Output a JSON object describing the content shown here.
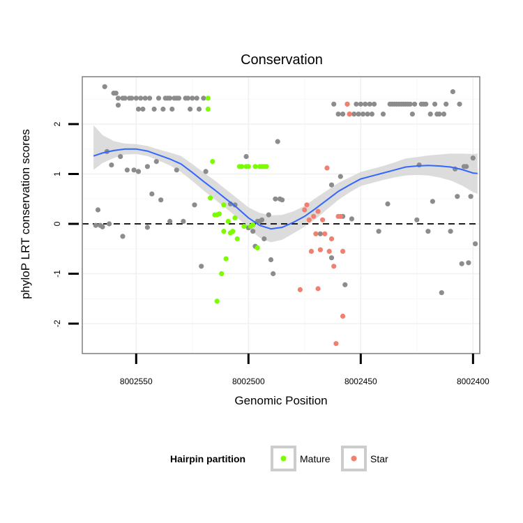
{
  "chart_data": {
    "type": "scatter",
    "title": "Conservation",
    "xlabel": "Genomic Position",
    "ylabel": "phyloP LRT conservation scores",
    "x_reversed": true,
    "xlim": [
      8002574,
      8002397
    ],
    "ylim": [
      -2.6,
      2.95
    ],
    "x_ticks": [
      8002550,
      8002500,
      8002450,
      8002400
    ],
    "x_tick_labels": [
      "8002550",
      "8002500",
      "8002450",
      "8002400"
    ],
    "y_ticks": [
      -2,
      -1,
      0,
      1,
      2
    ],
    "y_tick_labels": [
      "-2",
      "-1",
      "0",
      "1",
      "2"
    ],
    "reference_line": {
      "y": 0,
      "style": "dashed"
    },
    "grid": true,
    "legend": {
      "title": "Hairpin partition",
      "placement": "bottom",
      "entries": [
        {
          "name": "Mature",
          "color": "#7cfc00"
        },
        {
          "name": "Star",
          "color": "#f08070"
        }
      ]
    },
    "colors": {
      "other": "#8c8c8c",
      "mature": "#7cfc00",
      "star": "#f08070",
      "smooth": "#3366ff",
      "band": "#d6d6d6",
      "panel_border": "#7f7f7f"
    },
    "series": [
      {
        "group": "other",
        "points": [
          [
            8002568,
            -0.03
          ],
          [
            8002567,
            0.28
          ],
          [
            8002566,
            -0.03
          ],
          [
            8002565,
            -0.06
          ],
          [
            8002564,
            2.75
          ],
          [
            8002563,
            1.45
          ],
          [
            8002562,
            0.0
          ],
          [
            8002561,
            1.18
          ],
          [
            8002560,
            2.62
          ],
          [
            8002559,
            2.62
          ],
          [
            8002558,
            2.52
          ],
          [
            8002558,
            2.38
          ],
          [
            8002557,
            1.35
          ],
          [
            8002556,
            -0.25
          ],
          [
            8002556,
            2.52
          ],
          [
            8002555,
            2.52
          ],
          [
            8002554,
            1.08
          ],
          [
            8002553,
            2.52
          ],
          [
            8002552,
            2.52
          ],
          [
            8002551,
            1.08
          ],
          [
            8002550,
            2.52
          ],
          [
            8002549,
            1.05
          ],
          [
            8002549,
            2.3
          ],
          [
            8002548,
            2.52
          ],
          [
            8002547,
            2.3
          ],
          [
            8002546,
            2.52
          ],
          [
            8002545,
            -0.07
          ],
          [
            8002545,
            1.15
          ],
          [
            8002544,
            2.52
          ],
          [
            8002543,
            0.6
          ],
          [
            8002542,
            2.3
          ],
          [
            8002541,
            1.25
          ],
          [
            8002540,
            2.52
          ],
          [
            8002539,
            0.48
          ],
          [
            8002538,
            2.3
          ],
          [
            8002537,
            2.52
          ],
          [
            8002536,
            2.52
          ],
          [
            8002535,
            0.05
          ],
          [
            8002535,
            2.52
          ],
          [
            8002534,
            2.3
          ],
          [
            8002533,
            2.52
          ],
          [
            8002532,
            1.08
          ],
          [
            8002532,
            2.52
          ],
          [
            8002531,
            2.52
          ],
          [
            8002529,
            0.05
          ],
          [
            8002528,
            2.52
          ],
          [
            8002527,
            2.52
          ],
          [
            8002526,
            2.3
          ],
          [
            8002525,
            2.52
          ],
          [
            8002524,
            0.38
          ],
          [
            8002523,
            2.52
          ],
          [
            8002522,
            2.3
          ],
          [
            8002521,
            -0.85
          ],
          [
            8002520,
            2.52
          ],
          [
            8002519,
            1.05
          ],
          [
            8002508,
            0.4
          ],
          [
            8002506,
            0.38
          ],
          [
            8002501,
            1.35
          ],
          [
            8002500,
            -0.08
          ],
          [
            8002498,
            -0.15
          ],
          [
            8002497,
            -0.45
          ],
          [
            8002496,
            0.05
          ],
          [
            8002495,
            0.05
          ],
          [
            8002494,
            0.08
          ],
          [
            8002493,
            -0.3
          ],
          [
            8002491,
            0.18
          ],
          [
            8002490,
            -0.72
          ],
          [
            8002489,
            -1.0
          ],
          [
            8002488,
            0.5
          ],
          [
            8002487,
            1.65
          ],
          [
            8002486,
            0.5
          ],
          [
            8002485,
            0.48
          ],
          [
            8002468,
            -0.2
          ],
          [
            8002463,
            -0.68
          ],
          [
            8002463,
            0.78
          ],
          [
            8002462,
            2.4
          ],
          [
            8002460,
            2.2
          ],
          [
            8002459,
            0.95
          ],
          [
            8002458,
            2.2
          ],
          [
            8002458,
            0.15
          ],
          [
            8002457,
            -1.22
          ],
          [
            8002456,
            2.4
          ],
          [
            8002455,
            2.2
          ],
          [
            8002454,
            0.1
          ],
          [
            8002453,
            2.2
          ],
          [
            8002452,
            2.4
          ],
          [
            8002451,
            2.2
          ],
          [
            8002450,
            2.4
          ],
          [
            8002449,
            2.2
          ],
          [
            8002448,
            2.4
          ],
          [
            8002447,
            2.2
          ],
          [
            8002446,
            2.4
          ],
          [
            8002445,
            2.2
          ],
          [
            8002444,
            2.4
          ],
          [
            8002442,
            -0.15
          ],
          [
            8002440,
            2.2
          ],
          [
            8002438,
            0.4
          ],
          [
            8002437,
            2.4
          ],
          [
            8002436,
            2.4
          ],
          [
            8002435,
            2.4
          ],
          [
            8002434,
            2.4
          ],
          [
            8002433,
            2.4
          ],
          [
            8002432,
            2.4
          ],
          [
            8002431,
            2.4
          ],
          [
            8002430,
            2.4
          ],
          [
            8002429,
            2.4
          ],
          [
            8002428,
            2.4
          ],
          [
            8002427,
            2.2
          ],
          [
            8002426,
            2.4
          ],
          [
            8002425,
            0.08
          ],
          [
            8002424,
            1.18
          ],
          [
            8002423,
            2.4
          ],
          [
            8002422,
            2.4
          ],
          [
            8002421,
            2.4
          ],
          [
            8002420,
            -0.15
          ],
          [
            8002419,
            2.2
          ],
          [
            8002418,
            0.45
          ],
          [
            8002417,
            2.4
          ],
          [
            8002416,
            2.2
          ],
          [
            8002415,
            2.2
          ],
          [
            8002414,
            -1.38
          ],
          [
            8002413,
            2.2
          ],
          [
            8002412,
            2.4
          ],
          [
            8002410,
            -0.15
          ],
          [
            8002409,
            2.65
          ],
          [
            8002408,
            1.1
          ],
          [
            8002407,
            0.55
          ],
          [
            8002406,
            2.4
          ],
          [
            8002405,
            -0.8
          ],
          [
            8002404,
            1.15
          ],
          [
            8002403,
            1.15
          ],
          [
            8002402,
            -0.78
          ],
          [
            8002401,
            0.55
          ],
          [
            8002400,
            1.32
          ],
          [
            8002399,
            -0.4
          ]
        ]
      },
      {
        "group": "mature",
        "points": [
          [
            8002518,
            2.52
          ],
          [
            8002518,
            2.3
          ],
          [
            8002517,
            0.52
          ],
          [
            8002516,
            1.25
          ],
          [
            8002515,
            0.18
          ],
          [
            8002514,
            -1.55
          ],
          [
            8002514,
            0.18
          ],
          [
            8002513,
            0.2
          ],
          [
            8002512,
            -1.0
          ],
          [
            8002511,
            0.38
          ],
          [
            8002511,
            -0.15
          ],
          [
            8002510,
            -0.7
          ],
          [
            8002509,
            0.05
          ],
          [
            8002508,
            -0.18
          ],
          [
            8002507,
            -0.15
          ],
          [
            8002506,
            0.12
          ],
          [
            8002505,
            -0.3
          ],
          [
            8002504,
            1.15
          ],
          [
            8002503,
            1.15
          ],
          [
            8002502,
            -0.05
          ],
          [
            8002501,
            1.15
          ],
          [
            8002500,
            1.15
          ],
          [
            8002499,
            -0.05
          ],
          [
            8002498,
            -0.02
          ],
          [
            8002497,
            1.15
          ],
          [
            8002496,
            -0.48
          ],
          [
            8002495,
            1.15
          ],
          [
            8002494,
            1.15
          ],
          [
            8002493,
            1.15
          ],
          [
            8002492,
            1.15
          ]
        ]
      },
      {
        "group": "star",
        "points": [
          [
            8002477,
            -1.32
          ],
          [
            8002475,
            0.28
          ],
          [
            8002474,
            0.38
          ],
          [
            8002473,
            0.08
          ],
          [
            8002472,
            -0.55
          ],
          [
            8002471,
            0.15
          ],
          [
            8002470,
            -0.2
          ],
          [
            8002469,
            -1.3
          ],
          [
            8002469,
            0.25
          ],
          [
            8002468,
            -0.52
          ],
          [
            8002467,
            0.08
          ],
          [
            8002466,
            -0.2
          ],
          [
            8002465,
            1.12
          ],
          [
            8002464,
            -0.55
          ],
          [
            8002463,
            -0.3
          ],
          [
            8002462,
            -0.85
          ],
          [
            8002461,
            -2.4
          ],
          [
            8002460,
            0.15
          ],
          [
            8002459,
            0.15
          ],
          [
            8002458,
            -1.85
          ],
          [
            8002458,
            -0.55
          ],
          [
            8002456,
            2.4
          ],
          [
            8002455,
            2.2
          ]
        ]
      }
    ],
    "smooth": {
      "method": "loess",
      "x": [
        8002569,
        8002565,
        8002560,
        8002555,
        8002550,
        8002545,
        8002540,
        8002535,
        8002530,
        8002525,
        8002520,
        8002515,
        8002510,
        8002505,
        8002500,
        8002495,
        8002490,
        8002485,
        8002480,
        8002475,
        8002470,
        8002465,
        8002460,
        8002455,
        8002450,
        8002445,
        8002440,
        8002435,
        8002430,
        8002425,
        8002420,
        8002415,
        8002410,
        8002405,
        8002400,
        8002398
      ],
      "y": [
        1.36,
        1.42,
        1.47,
        1.5,
        1.5,
        1.46,
        1.38,
        1.3,
        1.2,
        1.03,
        0.85,
        0.68,
        0.5,
        0.32,
        0.12,
        -0.03,
        -0.1,
        -0.07,
        0.03,
        0.15,
        0.31,
        0.48,
        0.65,
        0.78,
        0.9,
        0.96,
        1.02,
        1.08,
        1.14,
        1.16,
        1.17,
        1.16,
        1.14,
        1.09,
        1.02,
        1.01
      ],
      "lower": [
        1.08,
        1.22,
        1.32,
        1.39,
        1.4,
        1.36,
        1.27,
        1.17,
        1.04,
        0.86,
        0.67,
        0.49,
        0.31,
        0.13,
        -0.09,
        -0.28,
        -0.37,
        -0.32,
        -0.19,
        -0.06,
        0.1,
        0.29,
        0.48,
        0.63,
        0.76,
        0.82,
        0.88,
        0.93,
        0.97,
        0.98,
        0.97,
        0.93,
        0.87,
        0.77,
        0.64,
        0.6
      ],
      "upper": [
        1.98,
        1.78,
        1.66,
        1.61,
        1.6,
        1.56,
        1.49,
        1.43,
        1.36,
        1.2,
        1.03,
        0.87,
        0.69,
        0.51,
        0.33,
        0.22,
        0.17,
        0.18,
        0.25,
        0.36,
        0.52,
        0.67,
        0.82,
        0.93,
        1.04,
        1.1,
        1.16,
        1.23,
        1.31,
        1.34,
        1.37,
        1.39,
        1.41,
        1.41,
        1.4,
        1.41
      ]
    }
  }
}
